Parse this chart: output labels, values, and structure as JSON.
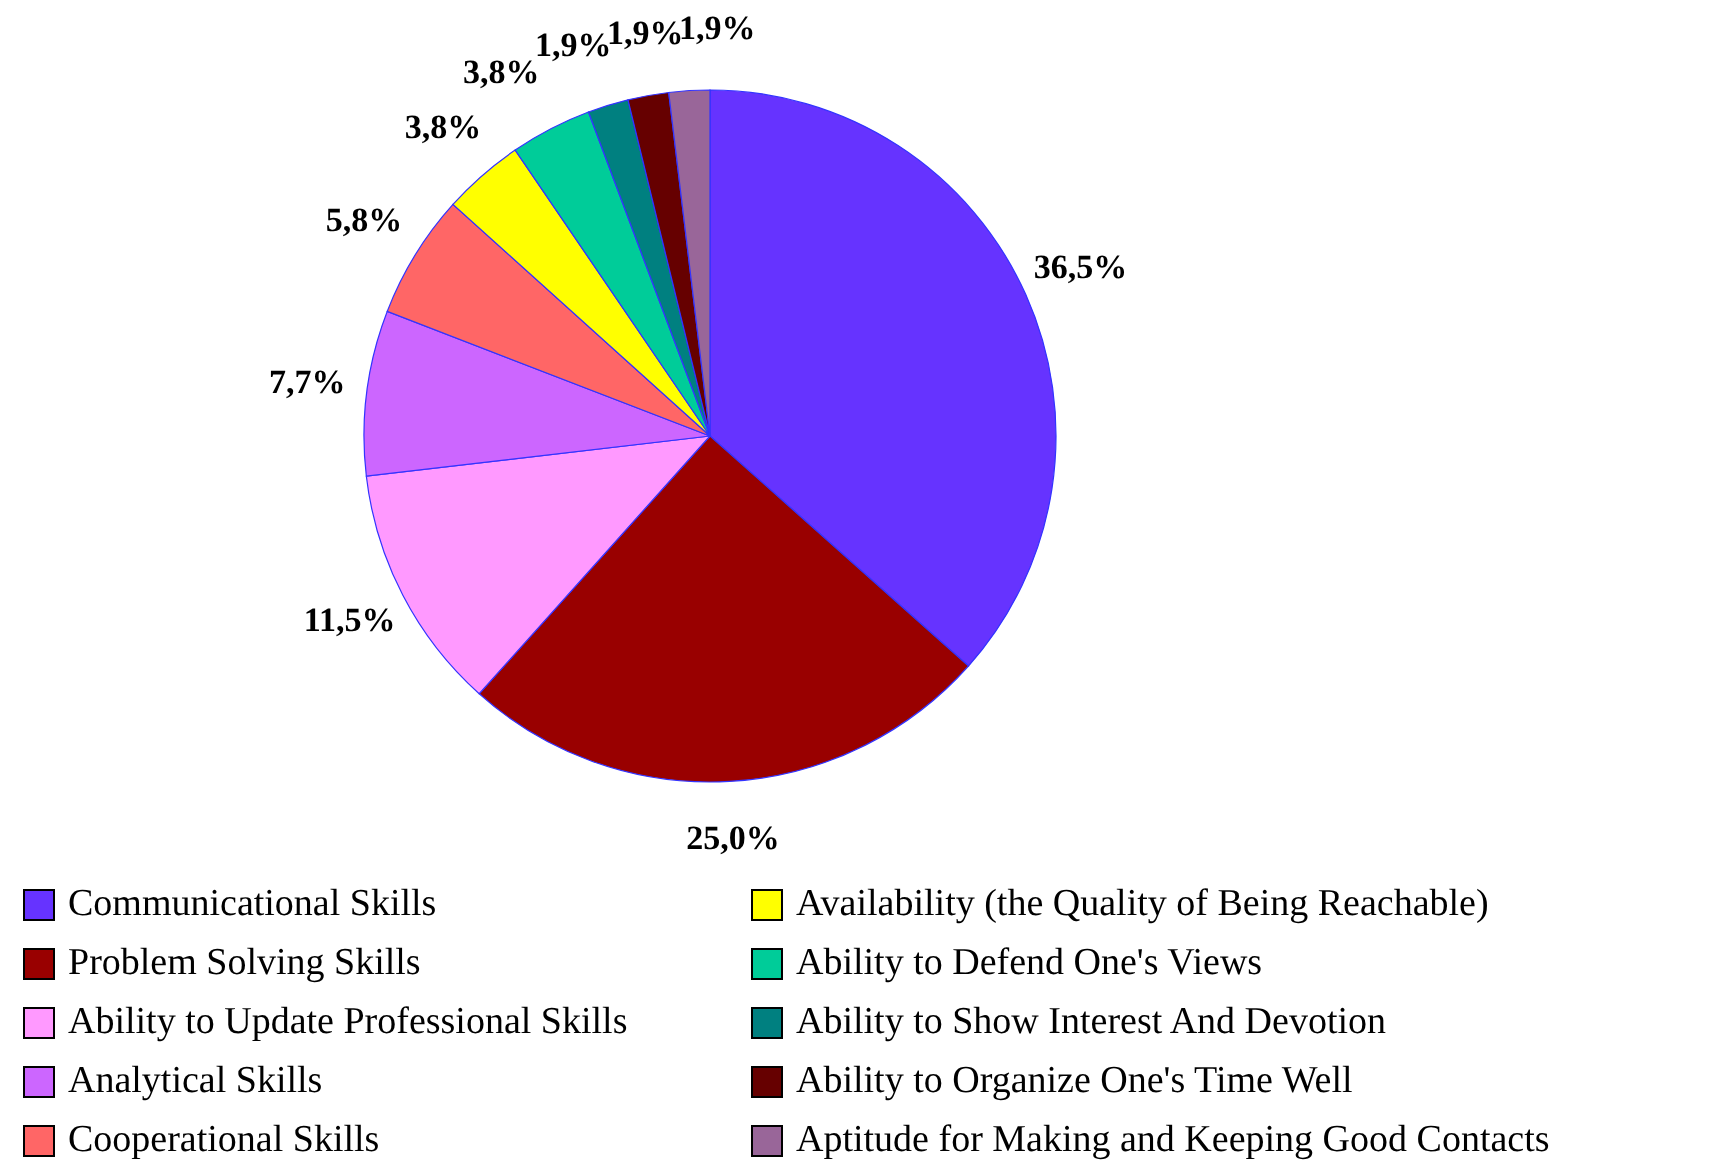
{
  "chart_data": {
    "type": "pie",
    "categories": [
      "Communicational Skills",
      "Problem Solving Skills",
      "Ability to Update Professional Skills",
      "Analytical Skills",
      "Cooperational Skills",
      "Availability (the Quality of Being Reachable)",
      "Ability to Defend One's Views",
      "Ability to Show Interest And Devotion",
      "Ability to Organize One's Time Well",
      "Aptitude for Making and Keeping Good Contacts"
    ],
    "values": [
      36.5,
      25.0,
      11.5,
      7.7,
      5.8,
      3.8,
      3.8,
      1.9,
      1.9,
      1.9
    ],
    "value_labels": [
      "36,5%",
      "25,0%",
      "11,5%",
      "7,7%",
      "5,8%",
      "3,8%",
      "3,8%",
      "1,9%",
      "1,9%",
      "1,9%"
    ],
    "colors": [
      "#6633ff",
      "#990000",
      "#ff99ff",
      "#cc66ff",
      "#ff6666",
      "#ffff00",
      "#00cc99",
      "#008080",
      "#660000",
      "#996699"
    ],
    "legend": "bottom"
  }
}
